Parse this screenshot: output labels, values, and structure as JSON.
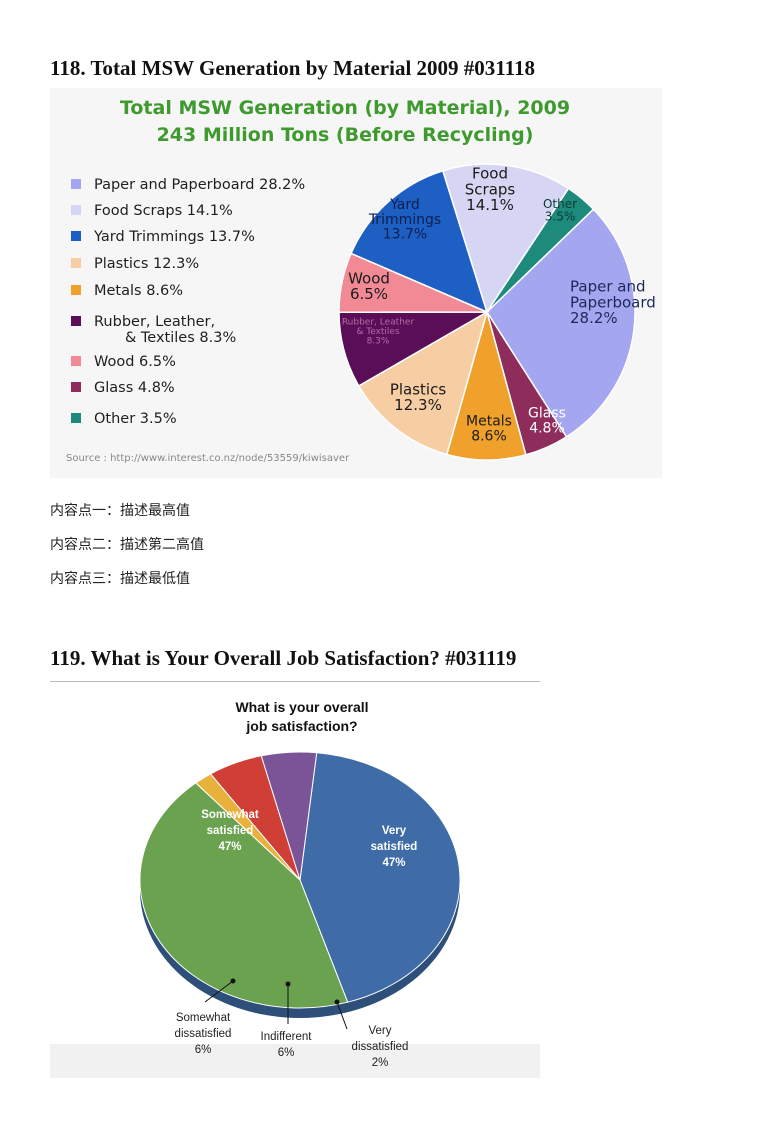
{
  "section1": {
    "title": "118.  Total MSW Generation by Material 2009 #031118"
  },
  "section2": {
    "title": "119.  What is Your Overall Job Satisfaction? #031119"
  },
  "notes": [
    "内容点一：描述最高值",
    "内容点二：描述第二高值",
    "内容点三：描述最低值"
  ],
  "chart_data": [
    {
      "type": "pie",
      "title": "Total MSW Generation (by Material), 2009",
      "subtitle": "243 Million Tons (Before Recycling)",
      "source": "Source : http://www.interest.co.nz/node/53559/kiwisaver",
      "slices": [
        {
          "name": "Paper and Paperboard",
          "value": 28.2,
          "color": "#a4a6ef",
          "label": [
            "Paper and",
            "Paperboard",
            "28.2%"
          ],
          "legend": [
            "Paper and Paperboard  28.2%"
          ]
        },
        {
          "name": "Glass",
          "value": 4.8,
          "color": "#8e2d5c",
          "label": [
            "Glass",
            "4.8%"
          ],
          "legend": [
            "Glass 4.8%"
          ]
        },
        {
          "name": "Metals",
          "value": 8.6,
          "color": "#f0a12c",
          "label": [
            "Metals",
            "8.6%"
          ],
          "legend": [
            "Metals 8.6%"
          ]
        },
        {
          "name": "Plastics",
          "value": 12.3,
          "color": "#f7cea3",
          "label": [
            "Plastics",
            "12.3%"
          ],
          "legend": [
            "Plastics 12.3%"
          ]
        },
        {
          "name": "Rubber, Leather, & Textiles",
          "value": 8.3,
          "color": "#5a0e58",
          "label": [
            "Rubber, Leather",
            "& Textiles",
            "8.3%"
          ],
          "legend": [
            "Rubber, Leather,",
            "& Textiles 8.3%"
          ]
        },
        {
          "name": "Wood",
          "value": 6.5,
          "color": "#f28a96",
          "label": [
            "Wood",
            "6.5%"
          ],
          "legend": [
            "Wood 6.5%"
          ]
        },
        {
          "name": "Yard Trimmings",
          "value": 13.7,
          "color": "#1e5fc4",
          "label": [
            "Yard",
            "Trimmings",
            "13.7%"
          ],
          "legend": [
            "Yard Trimmings 13.7%"
          ]
        },
        {
          "name": "Food Scraps",
          "value": 14.1,
          "color": "#d6d6f4",
          "label": [
            "Food",
            "Scraps",
            "14.1%"
          ],
          "legend": [
            "Food Scraps 14.1%"
          ]
        },
        {
          "name": "Other",
          "value": 3.5,
          "color": "#1d8a7c",
          "label": [
            "Other",
            "3.5%"
          ],
          "legend": [
            "Other 3.5%"
          ]
        }
      ],
      "legend_order": [
        "Paper and Paperboard",
        "Food Scraps",
        "Yard Trimmings",
        "Plastics",
        "Metals",
        "Rubber, Leather, & Textiles",
        "Wood",
        "Glass",
        "Other"
      ],
      "legend_placement": "left"
    },
    {
      "type": "pie",
      "title": "What is your overall job satisfaction?",
      "slices": [
        {
          "name": "Somewhat satisfied",
          "value": 47,
          "color": "#3f6ca6",
          "label": [
            "Somewhat",
            "satisfied",
            "47%"
          ]
        },
        {
          "name": "Very satisfied",
          "value": 47,
          "color": "#6aa24f",
          "label": [
            "Very",
            "satisfied",
            "47%"
          ]
        },
        {
          "name": "Very dissatisfied",
          "value": 2,
          "color": "#e8b13c",
          "label": [
            "Very",
            "dissatisfied",
            "2%"
          ]
        },
        {
          "name": "Indifferent",
          "value": 6,
          "color": "#cf3f35",
          "label": [
            "Indifferent",
            "6%"
          ]
        },
        {
          "name": "Somewhat dissatisfied",
          "value": 6,
          "color": "#7b5497",
          "label": [
            "Somewhat",
            "dissatisfied",
            "6%"
          ]
        }
      ]
    }
  ]
}
